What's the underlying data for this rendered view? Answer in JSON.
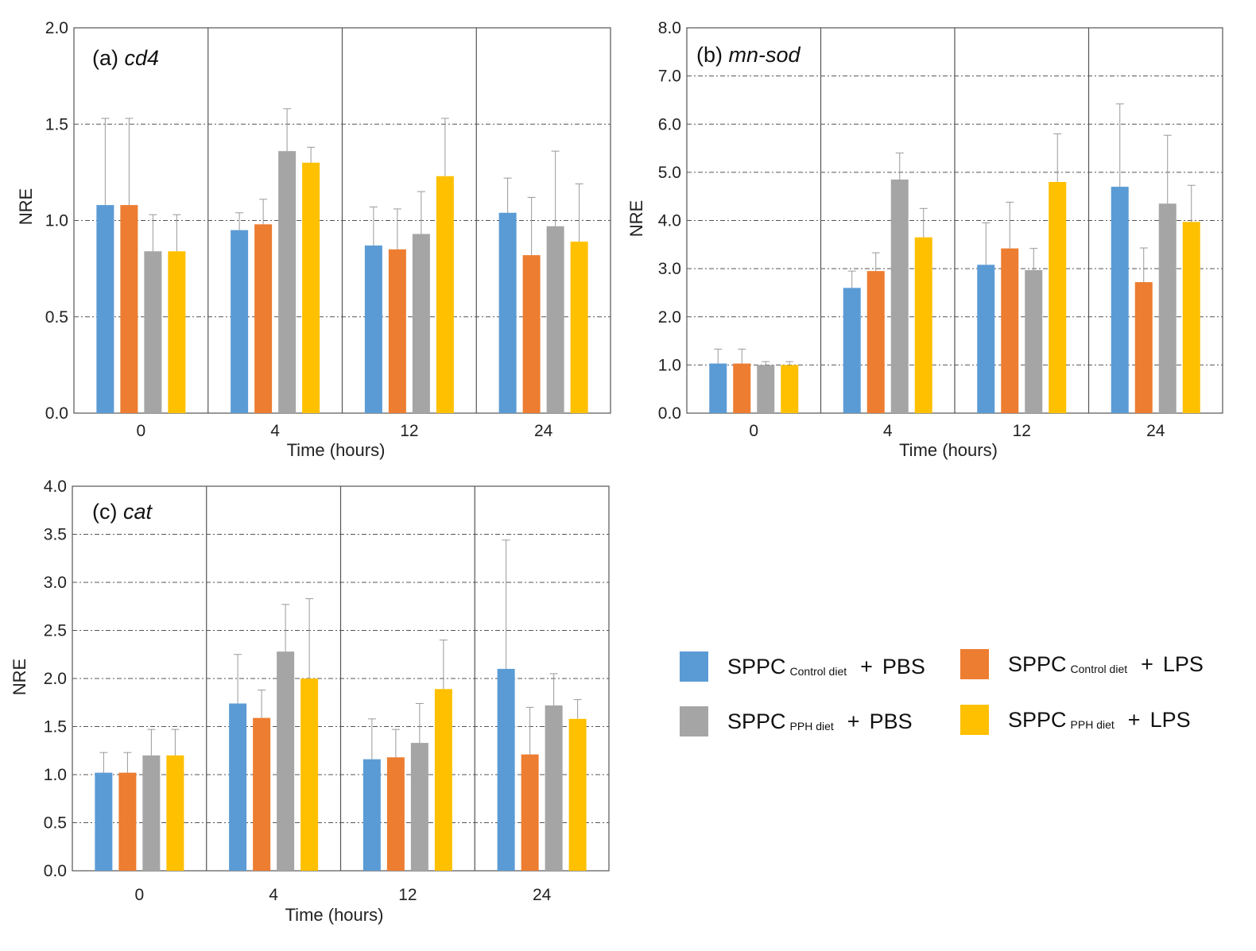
{
  "chart_data": [
    {
      "type": "bar",
      "title": "(a)",
      "gene": "cd4",
      "xlabel": "Time (hours)",
      "ylabel": "NRE",
      "ylim": [
        0,
        2.0
      ],
      "yticks": [
        "0.0",
        "0.5",
        "1.0",
        "1.5",
        "2.0"
      ],
      "categories": [
        "0",
        "4",
        "12",
        "24"
      ],
      "grid": true,
      "series": [
        {
          "name": "SPPC Control diet + PBS",
          "values": [
            1.08,
            0.95,
            0.87,
            1.04
          ],
          "errors": [
            0.45,
            0.09,
            0.2,
            0.18
          ]
        },
        {
          "name": "SPPC Control diet + LPS",
          "values": [
            1.08,
            0.98,
            0.85,
            0.82
          ],
          "errors": [
            0.45,
            0.13,
            0.21,
            0.3
          ]
        },
        {
          "name": "SPPC PPH diet + PBS",
          "values": [
            0.84,
            1.36,
            0.93,
            0.97
          ],
          "errors": [
            0.19,
            0.22,
            0.22,
            0.39
          ]
        },
        {
          "name": "SPPC PPH diet + LPS",
          "values": [
            0.84,
            1.3,
            1.23,
            0.89
          ],
          "errors": [
            0.19,
            0.08,
            0.3,
            0.3
          ]
        }
      ]
    },
    {
      "type": "bar",
      "title": "(b)",
      "gene": "mn-sod",
      "xlabel": "Time (hours)",
      "ylabel": "NRE",
      "ylim": [
        0,
        8.0
      ],
      "yticks": [
        "0.0",
        "1.0",
        "2.0",
        "3.0",
        "4.0",
        "5.0",
        "6.0",
        "7.0",
        "8.0"
      ],
      "categories": [
        "0",
        "4",
        "12",
        "24"
      ],
      "grid": true,
      "series": [
        {
          "name": "SPPC Control diet + PBS",
          "values": [
            1.03,
            2.6,
            3.08,
            4.7
          ],
          "errors": [
            0.3,
            0.35,
            0.87,
            1.72
          ]
        },
        {
          "name": "SPPC Control diet + LPS",
          "values": [
            1.03,
            2.95,
            3.42,
            2.72
          ],
          "errors": [
            0.3,
            0.38,
            0.96,
            0.71
          ]
        },
        {
          "name": "SPPC PPH diet + PBS",
          "values": [
            1.0,
            4.85,
            2.97,
            4.35
          ],
          "errors": [
            0.07,
            0.55,
            0.45,
            1.42
          ]
        },
        {
          "name": "SPPC PPH diet + LPS",
          "values": [
            1.0,
            3.65,
            4.8,
            3.97
          ],
          "errors": [
            0.07,
            0.6,
            1.0,
            0.76
          ]
        }
      ]
    },
    {
      "type": "bar",
      "title": "(c)",
      "gene": "cat",
      "xlabel": "Time (hours)",
      "ylabel": "NRE",
      "ylim": [
        0,
        4.0
      ],
      "yticks": [
        "0.0",
        "0.5",
        "1.0",
        "1.5",
        "2.0",
        "2.5",
        "3.0",
        "3.5",
        "4.0"
      ],
      "categories": [
        "0",
        "4",
        "12",
        "24"
      ],
      "grid": true,
      "series": [
        {
          "name": "SPPC Control diet + PBS",
          "values": [
            1.02,
            1.74,
            1.16,
            2.1
          ],
          "errors": [
            0.21,
            0.51,
            0.42,
            1.34
          ]
        },
        {
          "name": "SPPC Control diet + LPS",
          "values": [
            1.02,
            1.59,
            1.18,
            1.21
          ],
          "errors": [
            0.21,
            0.29,
            0.29,
            0.49
          ]
        },
        {
          "name": "SPPC PPH diet + PBS",
          "values": [
            1.2,
            2.28,
            1.33,
            1.72
          ],
          "errors": [
            0.27,
            0.49,
            0.41,
            0.33
          ]
        },
        {
          "name": "SPPC PPH diet + LPS",
          "values": [
            1.2,
            2.0,
            1.89,
            1.58
          ],
          "errors": [
            0.27,
            0.83,
            0.51,
            0.2
          ]
        }
      ]
    }
  ],
  "colors": [
    "#5b9bd5",
    "#ed7d31",
    "#a5a5a5",
    "#ffc000"
  ],
  "legend": {
    "placement": "bottom-right",
    "items": [
      {
        "main": "SPPC",
        "sub": "Control diet",
        "plus": "+",
        "treat": "PBS"
      },
      {
        "main": "SPPC",
        "sub": "Control diet",
        "plus": "+",
        "treat": "LPS"
      },
      {
        "main": "SPPC",
        "sub": "PPH diet",
        "plus": "+",
        "treat": "PBS"
      },
      {
        "main": "SPPC",
        "sub": "PPH diet",
        "plus": "+",
        "treat": "LPS"
      }
    ]
  }
}
